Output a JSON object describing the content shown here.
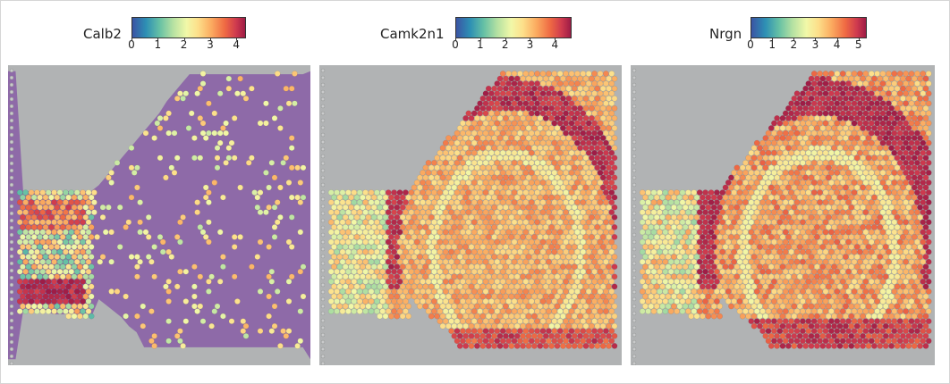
{
  "panels": [
    {
      "gene": "Calb2",
      "ticks": [
        "0",
        "1",
        "2",
        "3",
        "4"
      ],
      "vmax": 4.3,
      "pattern": "calb2"
    },
    {
      "gene": "Camk2n1",
      "ticks": [
        "0",
        "1",
        "2",
        "3",
        "4"
      ],
      "vmax": 4.6,
      "pattern": "camk2n1"
    },
    {
      "gene": "Nrgn",
      "ticks": [
        "0",
        "1",
        "2",
        "3",
        "4",
        "5"
      ],
      "vmax": 5.3,
      "pattern": "nrgn"
    }
  ],
  "colors": {
    "background": "#b1b3b4",
    "tissue_he": "#8e6aa8",
    "colormap": [
      "#3b54a4",
      "#2d8fb4",
      "#65c0a5",
      "#b5e1a2",
      "#f1f8a8",
      "#fde08b",
      "#fbab60",
      "#ef6a43",
      "#cf3a4e",
      "#9e1c46"
    ]
  }
}
